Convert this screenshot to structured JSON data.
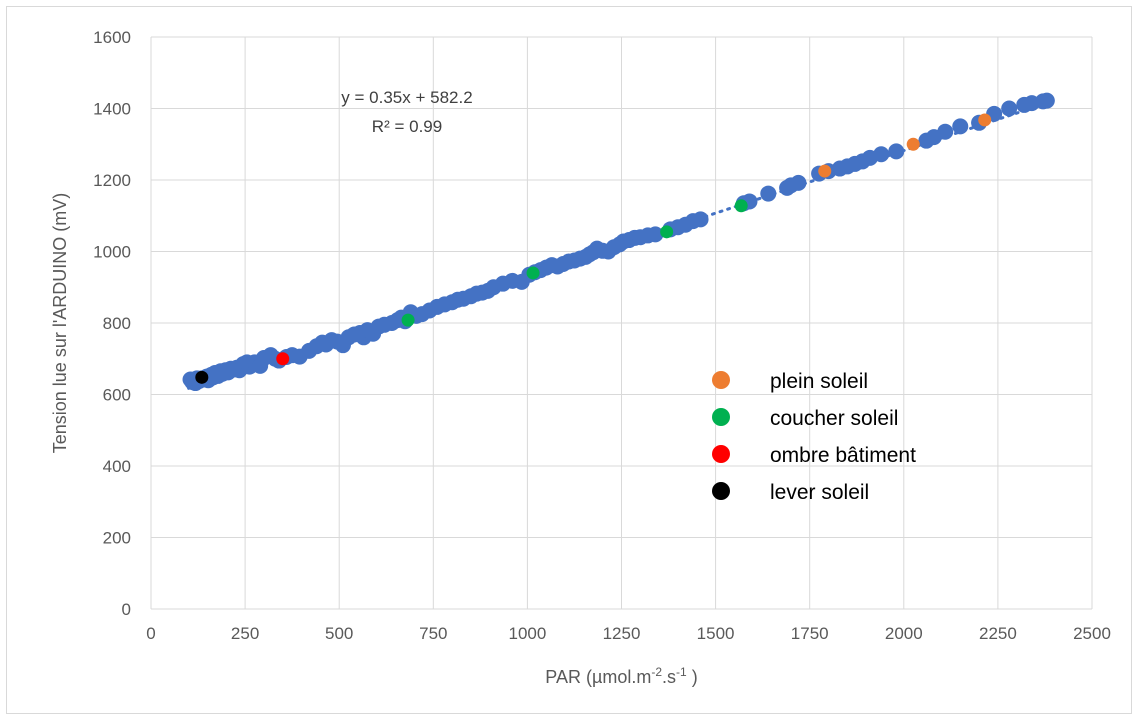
{
  "chart_data": {
    "type": "scatter",
    "xlabel_main": "PAR (µmol.m",
    "xlabel_sup1": "-2",
    "xlabel_mid": ".s",
    "xlabel_sup2": "-1",
    "xlabel_end": " )",
    "ylabel": "Tension lue sur l'ARDUINO (mV)",
    "xlim": [
      0,
      2500
    ],
    "ylim": [
      0,
      1600
    ],
    "x_ticks": [
      0,
      250,
      500,
      750,
      1000,
      1250,
      1500,
      1750,
      2000,
      2250,
      2500
    ],
    "y_ticks": [
      0,
      200,
      400,
      600,
      800,
      1000,
      1200,
      1400,
      1600
    ],
    "grid": true,
    "legend_position": "right",
    "trendline": {
      "equation": "y = 0.35x + 582.2",
      "r_squared_label": "R² = 0.99",
      "slope": 0.35,
      "intercept": 582.2,
      "x_range": [
        100,
        2380
      ],
      "style": "dotted",
      "color": "#4472c4"
    },
    "series": [
      {
        "name": "",
        "color": "#4472c4",
        "points": [
          [
            105,
            642
          ],
          [
            110,
            635
          ],
          [
            115,
            640
          ],
          [
            118,
            632
          ],
          [
            122,
            645
          ],
          [
            128,
            638
          ],
          [
            135,
            645
          ],
          [
            140,
            642
          ],
          [
            148,
            650
          ],
          [
            152,
            640
          ],
          [
            160,
            655
          ],
          [
            165,
            648
          ],
          [
            170,
            660
          ],
          [
            178,
            652
          ],
          [
            185,
            665
          ],
          [
            190,
            658
          ],
          [
            198,
            668
          ],
          [
            205,
            662
          ],
          [
            212,
            672
          ],
          [
            220,
            670
          ],
          [
            228,
            675
          ],
          [
            235,
            668
          ],
          [
            245,
            685
          ],
          [
            255,
            690
          ],
          [
            262,
            678
          ],
          [
            275,
            690
          ],
          [
            290,
            680
          ],
          [
            300,
            702
          ],
          [
            318,
            710
          ],
          [
            330,
            700
          ],
          [
            340,
            695
          ],
          [
            360,
            705
          ],
          [
            375,
            710
          ],
          [
            395,
            706
          ],
          [
            420,
            722
          ],
          [
            440,
            735
          ],
          [
            455,
            745
          ],
          [
            465,
            740
          ],
          [
            480,
            752
          ],
          [
            495,
            748
          ],
          [
            510,
            738
          ],
          [
            525,
            760
          ],
          [
            540,
            768
          ],
          [
            555,
            772
          ],
          [
            565,
            760
          ],
          [
            575,
            780
          ],
          [
            590,
            770
          ],
          [
            605,
            790
          ],
          [
            620,
            795
          ],
          [
            640,
            800
          ],
          [
            655,
            808
          ],
          [
            665,
            815
          ],
          [
            675,
            805
          ],
          [
            690,
            830
          ],
          [
            705,
            820
          ],
          [
            720,
            825
          ],
          [
            740,
            835
          ],
          [
            760,
            845
          ],
          [
            780,
            852
          ],
          [
            800,
            858
          ],
          [
            815,
            865
          ],
          [
            830,
            868
          ],
          [
            850,
            875
          ],
          [
            865,
            882
          ],
          [
            880,
            885
          ],
          [
            895,
            890
          ],
          [
            910,
            900
          ],
          [
            935,
            910
          ],
          [
            960,
            918
          ],
          [
            985,
            915
          ],
          [
            1005,
            935
          ],
          [
            1020,
            942
          ],
          [
            1035,
            948
          ],
          [
            1050,
            955
          ],
          [
            1065,
            962
          ],
          [
            1080,
            958
          ],
          [
            1095,
            965
          ],
          [
            1110,
            972
          ],
          [
            1125,
            975
          ],
          [
            1140,
            980
          ],
          [
            1155,
            985
          ],
          [
            1165,
            992
          ],
          [
            1175,
            998
          ],
          [
            1185,
            1008
          ],
          [
            1200,
            1002
          ],
          [
            1215,
            1000
          ],
          [
            1230,
            1012
          ],
          [
            1245,
            1020
          ],
          [
            1255,
            1028
          ],
          [
            1270,
            1032
          ],
          [
            1285,
            1038
          ],
          [
            1300,
            1040
          ],
          [
            1320,
            1045
          ],
          [
            1340,
            1048
          ],
          [
            1380,
            1062
          ],
          [
            1400,
            1068
          ],
          [
            1420,
            1075
          ],
          [
            1440,
            1085
          ],
          [
            1460,
            1090
          ],
          [
            1575,
            1135
          ],
          [
            1590,
            1140
          ],
          [
            1640,
            1162
          ],
          [
            1690,
            1178
          ],
          [
            1700,
            1185
          ],
          [
            1720,
            1192
          ],
          [
            1775,
            1218
          ],
          [
            1800,
            1225
          ],
          [
            1830,
            1232
          ],
          [
            1850,
            1238
          ],
          [
            1870,
            1245
          ],
          [
            1890,
            1252
          ],
          [
            1910,
            1262
          ],
          [
            1940,
            1272
          ],
          [
            1980,
            1280
          ],
          [
            2060,
            1310
          ],
          [
            2080,
            1320
          ],
          [
            2110,
            1335
          ],
          [
            2150,
            1350
          ],
          [
            2200,
            1360
          ],
          [
            2240,
            1385
          ],
          [
            2280,
            1400
          ],
          [
            2320,
            1410
          ],
          [
            2340,
            1415
          ],
          [
            2370,
            1420
          ],
          [
            2380,
            1422
          ]
        ]
      },
      {
        "name": "plein soleil",
        "color": "#ed7d31",
        "points": [
          [
            1790,
            1225
          ],
          [
            2025,
            1300
          ],
          [
            2215,
            1368
          ]
        ]
      },
      {
        "name": "coucher soleil",
        "color": "#00b050",
        "points": [
          [
            683,
            808
          ],
          [
            1015,
            940
          ],
          [
            1370,
            1055
          ],
          [
            1568,
            1128
          ]
        ]
      },
      {
        "name": "ombre bâtiment",
        "color": "#ff0000",
        "points": [
          [
            350,
            700
          ]
        ]
      },
      {
        "name": "lever soleil",
        "color": "#000000",
        "points": [
          [
            135,
            648
          ]
        ]
      }
    ]
  }
}
